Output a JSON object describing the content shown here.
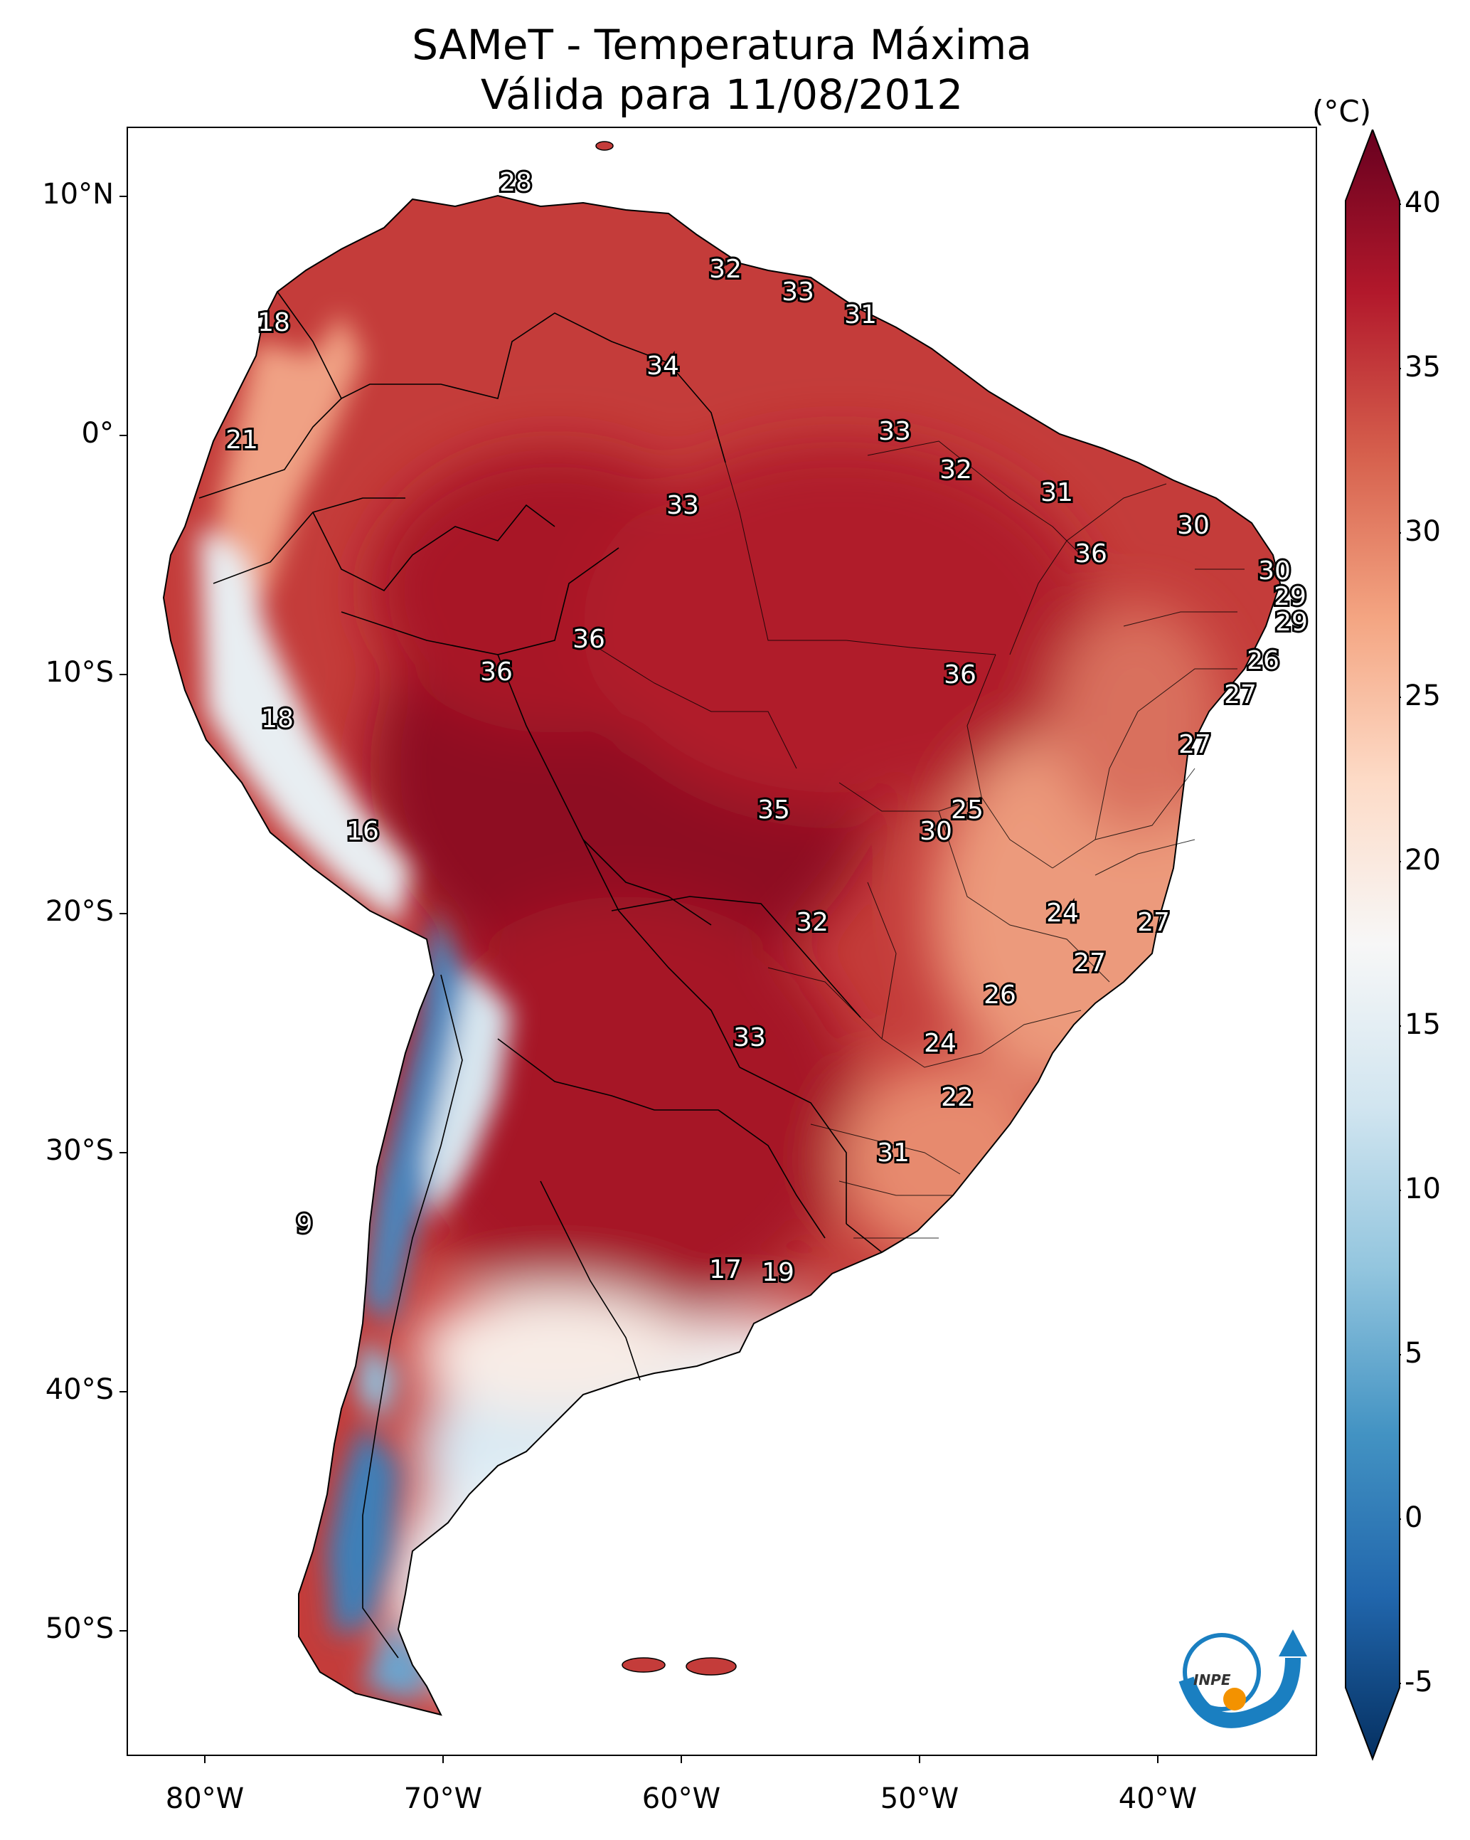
{
  "title": {
    "line1": "SAMeT - Temperatura Máxima",
    "line2": "Válida para 11/08/2012"
  },
  "axes": {
    "latitude_labels": [
      "10°N",
      "0°",
      "10°S",
      "20°S",
      "30°S",
      "40°S",
      "50°S"
    ],
    "longitude_labels": [
      "80°W",
      "70°W",
      "60°W",
      "50°W",
      "40°W"
    ]
  },
  "colorbar": {
    "unit": "(°C)",
    "ticks": [
      "40",
      "35",
      "30",
      "25",
      "20",
      "15",
      "10",
      "5",
      "0",
      "-5"
    ],
    "range": [
      -5,
      40
    ],
    "colormap": "RdBu_r",
    "colors": [
      "#053061",
      "#2166ac",
      "#4393c3",
      "#92c5de",
      "#d1e5f0",
      "#f7f7f7",
      "#fddbc7",
      "#f4a582",
      "#d6604d",
      "#b2182b",
      "#67001f"
    ]
  },
  "contour_labels": [
    "28",
    "32",
    "33",
    "31",
    "34",
    "18",
    "21",
    "33",
    "32",
    "33",
    "31",
    "30",
    "36",
    "30",
    "29",
    "29",
    "36",
    "36",
    "36",
    "26",
    "27",
    "27",
    "18",
    "35",
    "25",
    "16",
    "30",
    "24",
    "27",
    "32",
    "27",
    "26",
    "33",
    "24",
    "22",
    "31",
    "9",
    "17",
    "19"
  ],
  "logo": {
    "name": "inpe-logo",
    "text": "INPE"
  },
  "colors": {
    "ocean": "#ffffff",
    "hot": "#b2182b",
    "warm": "#d6604d",
    "mild": "#f4a582",
    "cool": "#d1e5f0",
    "cold": "#4393c3",
    "logo_blue": "#1a7fc1",
    "logo_orange": "#f39200"
  }
}
